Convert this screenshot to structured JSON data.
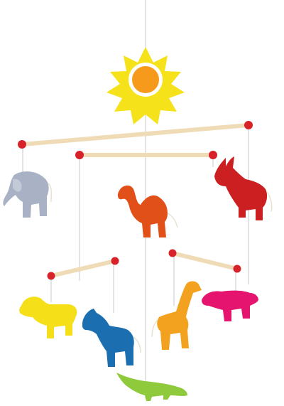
{
  "scene": {
    "description_free": true,
    "background": "#ffffff",
    "colors": {
      "string": "#c8c8c8",
      "wood": "#efdcb6",
      "wood_shadow": "#d9c29a",
      "bead": "#d8222a",
      "sun_outer": "#f6e21a",
      "sun_ring": "#ffffff",
      "sun_core": "#f59a1b",
      "elephant": "#a9b2c4",
      "camel": "#e2501a",
      "donkey": "#cc1f22",
      "lion": "#f5df18",
      "zebra": "#1b6fb0",
      "giraffe": "#f3a21f",
      "rhino": "#e4146f",
      "crocodile": "#8fca3c"
    },
    "objects": [
      "sun",
      "elephant",
      "camel",
      "donkey",
      "lion",
      "zebra",
      "giraffe",
      "rhino",
      "crocodile"
    ]
  }
}
